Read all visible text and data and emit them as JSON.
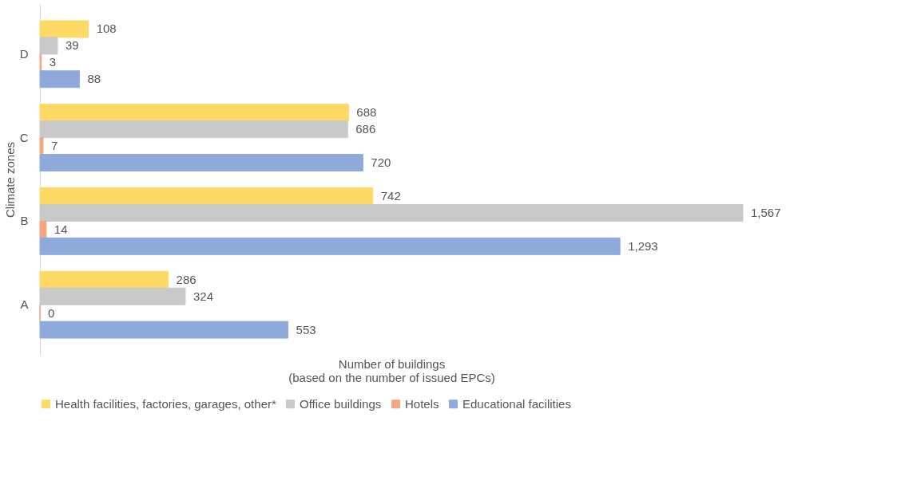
{
  "chart_data": {
    "type": "bar",
    "orientation": "horizontal",
    "xlabel": "Number of buildings\n(based on the number of issued EPCs)",
    "ylabel": "Climate zones",
    "categories": [
      "D",
      "C",
      "B",
      "A"
    ],
    "series": [
      {
        "name": "Health facilities, factories, garages, other*",
        "color": "#ffd966",
        "values": [
          108,
          688,
          742,
          286
        ],
        "value_labels": [
          "108",
          "688",
          "742",
          "286"
        ]
      },
      {
        "name": "Office buildings",
        "color": "#c9c9c9",
        "values": [
          39,
          686,
          1567,
          324
        ],
        "value_labels": [
          "39",
          "686",
          "1,567",
          "324"
        ]
      },
      {
        "name": "Hotels",
        "color": "#f4a582",
        "values": [
          3,
          7,
          14,
          0
        ],
        "value_labels": [
          "3",
          "7",
          "14",
          "0"
        ]
      },
      {
        "name": "Educational facilities",
        "color": "#8eaadb",
        "values": [
          88,
          720,
          1293,
          553
        ],
        "value_labels": [
          "88",
          "720",
          "1,293",
          "553"
        ]
      }
    ],
    "legend": "bottom",
    "grid": false
  }
}
